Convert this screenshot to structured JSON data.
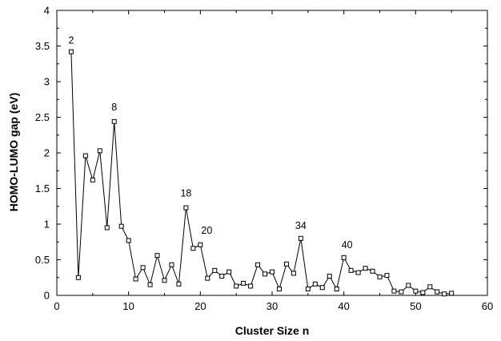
{
  "chart_data": {
    "type": "line",
    "title": "",
    "xlabel": "Cluster Size n",
    "ylabel": "HOMO-LUMO gap (eV)",
    "xlim": [
      0,
      60
    ],
    "ylim": [
      0,
      4
    ],
    "xticks": [
      0,
      10,
      20,
      30,
      40,
      50,
      60
    ],
    "yticks": [
      0,
      0.5,
      1,
      1.5,
      2,
      2.5,
      3,
      3.5,
      4
    ],
    "xtick_labels": [
      "0",
      "10",
      "20",
      "30",
      "40",
      "50",
      "60"
    ],
    "ytick_labels": [
      "0",
      "0.5",
      "1",
      "1.5",
      "2",
      "2.5",
      "3",
      "3.5",
      "4"
    ],
    "grid": false,
    "marker": "open-square",
    "series": [
      {
        "x": [
          2,
          3,
          4,
          5,
          6,
          7,
          8,
          9,
          10,
          11,
          12,
          13,
          14,
          15,
          16,
          17,
          18,
          19,
          20,
          21,
          22,
          23,
          24,
          25,
          26,
          27,
          28,
          29,
          30,
          31,
          32,
          33,
          34,
          35,
          36,
          37,
          38,
          39,
          40,
          41,
          42,
          43,
          44,
          45,
          46,
          47,
          48,
          49,
          50,
          51,
          52,
          53,
          54,
          55
        ],
        "y": [
          3.42,
          0.25,
          1.96,
          1.62,
          2.03,
          0.95,
          2.44,
          0.97,
          0.77,
          0.23,
          0.39,
          0.15,
          0.56,
          0.21,
          0.43,
          0.16,
          1.23,
          0.66,
          0.71,
          0.24,
          0.35,
          0.27,
          0.33,
          0.13,
          0.17,
          0.13,
          0.43,
          0.3,
          0.33,
          0.09,
          0.44,
          0.31,
          0.8,
          0.09,
          0.16,
          0.11,
          0.27,
          0.09,
          0.53,
          0.35,
          0.32,
          0.38,
          0.34,
          0.26,
          0.28,
          0.06,
          0.05,
          0.14,
          0.06,
          0.04,
          0.12,
          0.05,
          0.02,
          0.03
        ]
      }
    ],
    "annotations": [
      {
        "text": "2",
        "x": 2,
        "y": 3.42
      },
      {
        "text": "8",
        "x": 8,
        "y": 2.44
      },
      {
        "text": "18",
        "x": 18,
        "y": 1.23
      },
      {
        "text": "20",
        "x": 20,
        "y": 0.71
      },
      {
        "text": "34",
        "x": 34,
        "y": 0.8
      },
      {
        "text": "40",
        "x": 40,
        "y": 0.53
      }
    ]
  }
}
